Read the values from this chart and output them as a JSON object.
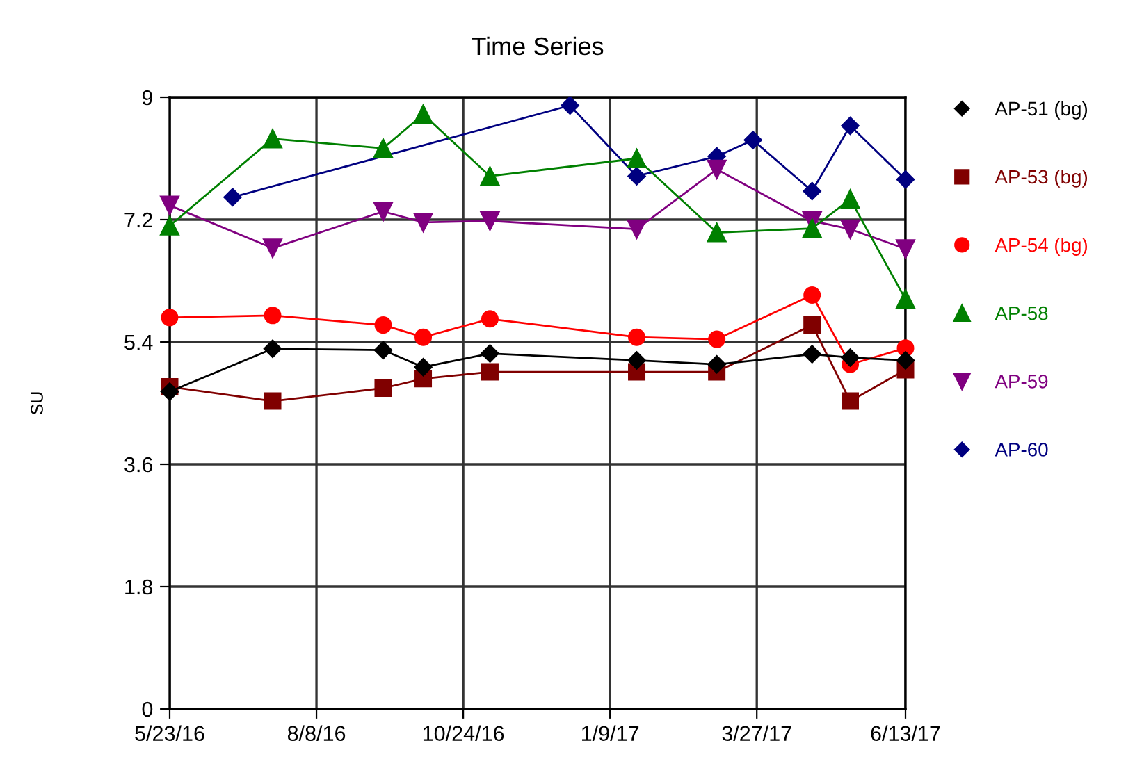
{
  "chart_data": {
    "type": "line",
    "title": "Time Series",
    "ylabel": "SU",
    "xlim": [
      "2016-05-23",
      "2017-06-13"
    ],
    "xticks": [
      {
        "value": "2016-05-23",
        "label": "5/23/16"
      },
      {
        "value": "2016-08-08",
        "label": "8/8/16"
      },
      {
        "value": "2016-10-24",
        "label": "10/24/16"
      },
      {
        "value": "2017-01-09",
        "label": "1/9/17"
      },
      {
        "value": "2017-03-27",
        "label": "3/27/17"
      },
      {
        "value": "2017-06-13",
        "label": "6/13/17"
      }
    ],
    "ylim": [
      0,
      9
    ],
    "yticks": [
      0,
      1.8,
      3.6,
      5.4,
      7.2,
      9
    ],
    "grid": true,
    "legend": "right",
    "line_style": "solid",
    "series": [
      {
        "name": "AP-51 (bg)",
        "color": "#000000",
        "marker": "diamond",
        "x": [
          "2016-05-23",
          "2016-07-16",
          "2016-09-12",
          "2016-10-03",
          "2016-11-07",
          "2017-01-23",
          "2017-03-06",
          "2017-04-25",
          "2017-05-15",
          "2017-06-13"
        ],
        "values": [
          4.67,
          5.3,
          5.28,
          5.03,
          5.23,
          5.13,
          5.07,
          5.22,
          5.17,
          5.13
        ]
      },
      {
        "name": "AP-53 (bg)",
        "color": "#800000",
        "marker": "square",
        "x": [
          "2016-05-23",
          "2016-07-16",
          "2016-09-12",
          "2016-10-03",
          "2016-11-07",
          "2017-01-23",
          "2017-03-06",
          "2017-04-25",
          "2017-05-15",
          "2017-06-13"
        ],
        "values": [
          4.74,
          4.53,
          4.72,
          4.86,
          4.96,
          4.96,
          4.96,
          5.65,
          4.53,
          4.99
        ]
      },
      {
        "name": "AP-54 (bg)",
        "color": "#ff0000",
        "marker": "circle",
        "x": [
          "2016-05-23",
          "2016-07-16",
          "2016-09-12",
          "2016-10-03",
          "2016-11-07",
          "2017-01-23",
          "2017-03-06",
          "2017-04-25",
          "2017-05-15",
          "2017-06-13"
        ],
        "values": [
          5.76,
          5.79,
          5.65,
          5.47,
          5.74,
          5.47,
          5.44,
          6.09,
          5.07,
          5.31
        ]
      },
      {
        "name": "AP-58",
        "color": "#008000",
        "marker": "triangle",
        "x": [
          "2016-05-23",
          "2016-07-16",
          "2016-09-12",
          "2016-10-03",
          "2016-11-07",
          "2017-01-23",
          "2017-03-06",
          "2017-04-25",
          "2017-05-15",
          "2017-06-13"
        ],
        "values": [
          7.11,
          8.39,
          8.25,
          8.75,
          7.84,
          8.1,
          7.01,
          7.07,
          7.5,
          6.03
        ]
      },
      {
        "name": "AP-59",
        "color": "#800080",
        "marker": "triangle_down",
        "x": [
          "2016-05-23",
          "2016-07-16",
          "2016-09-12",
          "2016-10-03",
          "2016-11-07",
          "2017-01-23",
          "2017-03-06",
          "2017-04-25",
          "2017-05-15",
          "2017-06-13"
        ],
        "values": [
          7.41,
          6.78,
          7.32,
          7.16,
          7.18,
          7.06,
          7.94,
          7.18,
          7.06,
          6.77
        ]
      },
      {
        "name": "AP-60",
        "color": "#000080",
        "marker": "diamond",
        "x": [
          "2016-06-25",
          "2016-12-19",
          "2017-01-23",
          "2017-03-06",
          "2017-03-25",
          "2017-04-25",
          "2017-05-15",
          "2017-06-13"
        ],
        "values": [
          7.53,
          8.88,
          7.84,
          8.13,
          8.37,
          7.62,
          8.58,
          7.79
        ]
      }
    ]
  }
}
